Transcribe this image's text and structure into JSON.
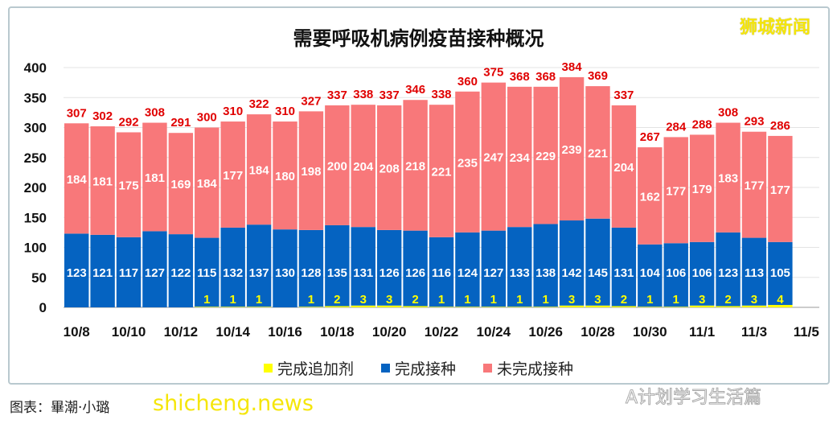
{
  "chart_data": {
    "type": "bar",
    "stacked": true,
    "title": "需要呼吸机病例疫苗接种概况",
    "categories": [
      "10/8",
      "10/9",
      "10/10",
      "10/11",
      "10/12",
      "10/13",
      "10/14",
      "10/15",
      "10/16",
      "10/17",
      "10/18",
      "10/19",
      "10/20",
      "10/21",
      "10/22",
      "10/23",
      "10/24",
      "10/25",
      "10/26",
      "10/27",
      "10/28",
      "10/29",
      "10/30",
      "10/31",
      "11/1",
      "11/2",
      "11/3",
      "11/4"
    ],
    "x_tick_labels": [
      "10/8",
      "10/10",
      "10/12",
      "10/14",
      "10/16",
      "10/18",
      "10/20",
      "10/22",
      "10/24",
      "10/26",
      "10/28",
      "10/30",
      "11/1",
      "11/3",
      "11/5"
    ],
    "series": [
      {
        "name": "完成追加剂",
        "color": "#ffff00",
        "values": [
          0,
          0,
          0,
          0,
          0,
          1,
          1,
          1,
          0,
          1,
          2,
          3,
          3,
          2,
          1,
          1,
          1,
          1,
          1,
          3,
          3,
          2,
          1,
          1,
          3,
          2,
          3,
          4
        ]
      },
      {
        "name": "完成接种",
        "color": "#0563c1",
        "values": [
          123,
          121,
          117,
          127,
          122,
          115,
          132,
          137,
          130,
          128,
          135,
          131,
          126,
          126,
          116,
          124,
          127,
          133,
          138,
          142,
          145,
          131,
          104,
          106,
          106,
          123,
          113,
          105
        ]
      },
      {
        "name": "未完成接种",
        "color": "#f8787a",
        "values": [
          184,
          181,
          175,
          181,
          169,
          184,
          177,
          184,
          180,
          198,
          200,
          204,
          208,
          218,
          221,
          235,
          247,
          234,
          229,
          239,
          221,
          204,
          162,
          177,
          179,
          183,
          177,
          177
        ]
      }
    ],
    "totals": [
      307,
      302,
      292,
      308,
      291,
      300,
      310,
      322,
      310,
      327,
      337,
      338,
      337,
      346,
      338,
      360,
      375,
      368,
      368,
      384,
      369,
      337,
      267,
      284,
      288,
      308,
      293,
      286
    ],
    "ylim": [
      0,
      400
    ],
    "y_ticks": [
      0,
      50,
      100,
      150,
      200,
      250,
      300,
      350,
      400
    ],
    "grid": true,
    "legend": "bottom",
    "total_label_color": "#e00000"
  },
  "watermarks": {
    "top_right": "狮城新闻",
    "bottom_left": "shicheng.news",
    "bottom_right": "A计划学习生活篇"
  },
  "credit": "图表：畢潮·小璐"
}
